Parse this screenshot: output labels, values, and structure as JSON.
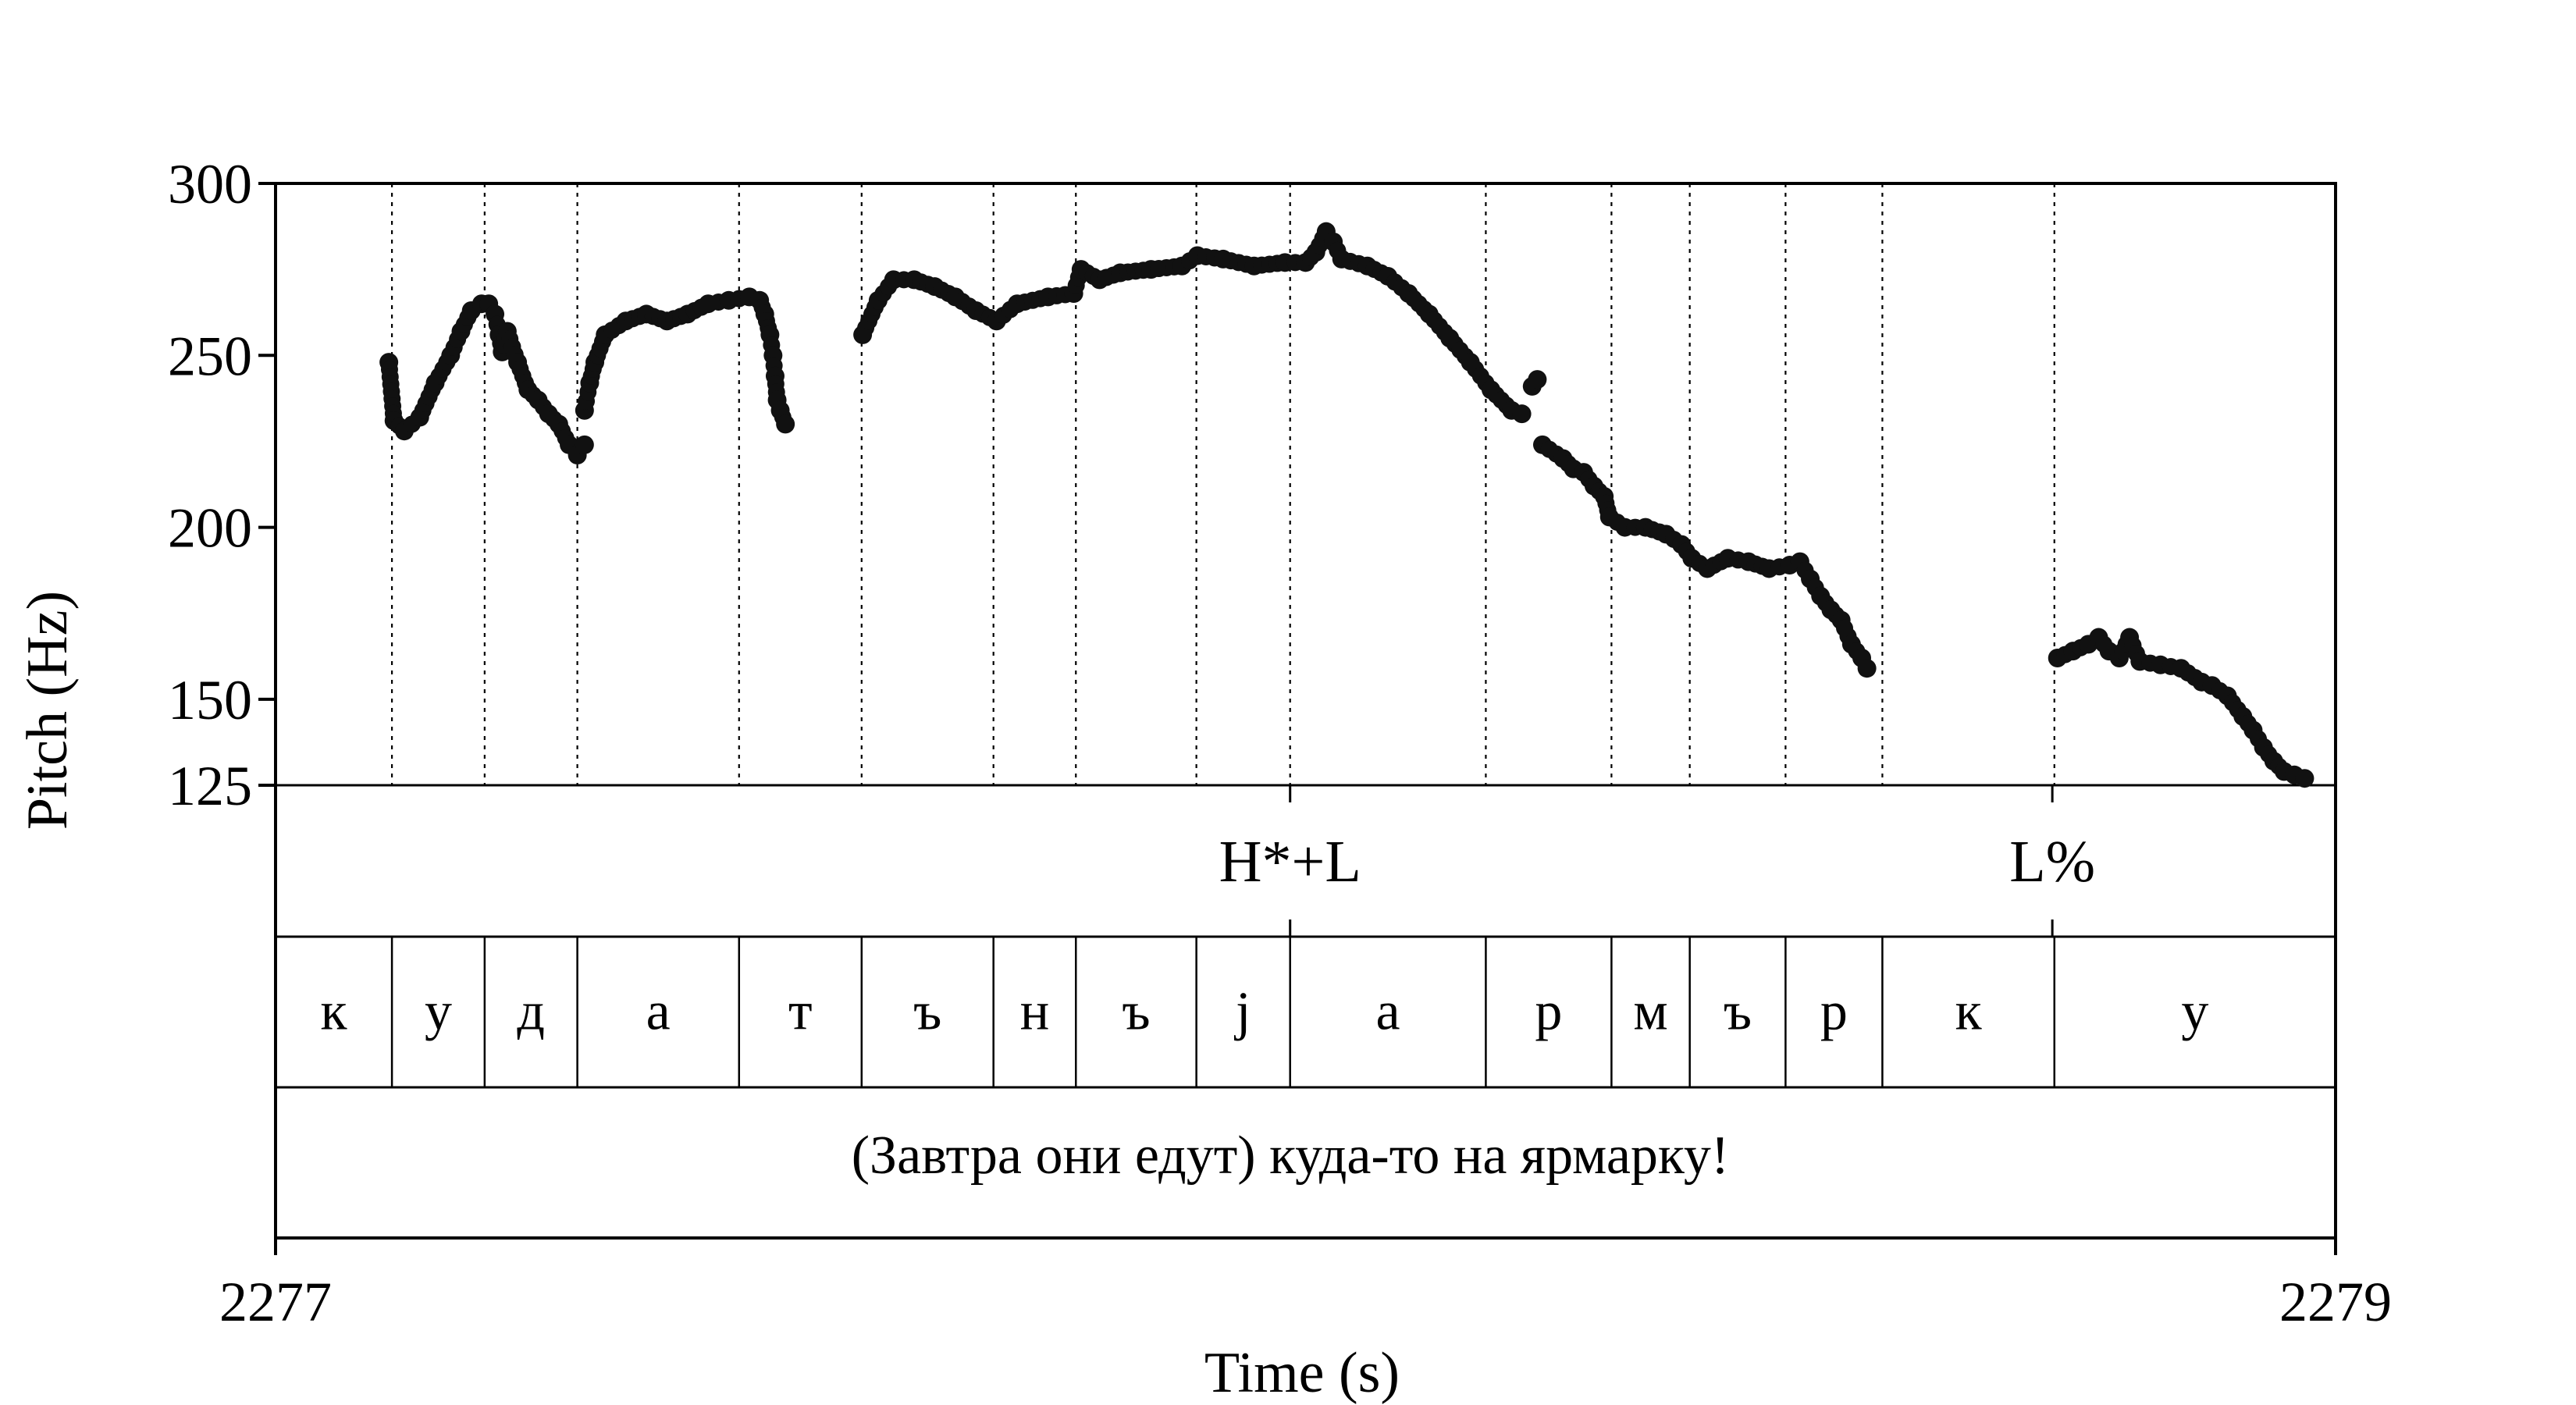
{
  "chart_data": {
    "type": "scatter",
    "xlabel": "Time (s)",
    "ylabel": "Pitch (Hz)",
    "x_unit": "s",
    "xlim": [
      2277.0,
      2279.0
    ],
    "ylim": [
      125,
      300
    ],
    "x_ticks": [
      "2277",
      "2279"
    ],
    "y_ticks": [
      {
        "value": 300,
        "label": "300"
      },
      {
        "value": 250,
        "label": "250"
      },
      {
        "value": 200,
        "label": "200"
      },
      {
        "value": 150,
        "label": "150"
      },
      {
        "value": 125,
        "label": "125"
      }
    ],
    "grid": "vertical dotted lines at segment boundaries",
    "tone_tier": [
      {
        "time": 2277.985,
        "label": "H*+L"
      },
      {
        "time": 2278.725,
        "label": "L%"
      }
    ],
    "segment_boundaries": [
      2277.0,
      2277.113,
      2277.203,
      2277.293,
      2277.45,
      2277.569,
      2277.697,
      2277.777,
      2277.894,
      2277.985,
      2278.175,
      2278.297,
      2278.373,
      2278.466,
      2278.56,
      2278.727,
      2279.0
    ],
    "segments": [
      "к",
      "у",
      "д",
      "а",
      "т",
      "ъ",
      "н",
      "ъ",
      "j",
      "а",
      "р",
      "м",
      "ъ",
      "р",
      "к",
      "у"
    ],
    "sentence": "(Завтра они едут) куда-то на ярмарку!",
    "pitch_contours": [
      [
        [
          2277.11,
          248
        ],
        [
          2277.115,
          231
        ],
        [
          2277.125,
          228
        ],
        [
          2277.14,
          232
        ],
        [
          2277.155,
          242
        ],
        [
          2277.17,
          250
        ],
        [
          2277.18,
          257
        ],
        [
          2277.19,
          263
        ],
        [
          2277.2,
          265
        ],
        [
          2277.207,
          265
        ],
        [
          2277.213,
          262
        ],
        [
          2277.217,
          256
        ],
        [
          2277.22,
          251
        ],
        [
          2277.225,
          257
        ],
        [
          2277.235,
          248
        ],
        [
          2277.245,
          240
        ],
        [
          2277.255,
          237
        ],
        [
          2277.265,
          233
        ],
        [
          2277.275,
          230
        ],
        [
          2277.285,
          224
        ],
        [
          2277.293,
          221
        ],
        [
          2277.3,
          224
        ]
      ],
      [
        [
          2277.3,
          234
        ],
        [
          2277.305,
          242
        ],
        [
          2277.31,
          248
        ],
        [
          2277.32,
          256
        ],
        [
          2277.34,
          260
        ],
        [
          2277.36,
          262
        ],
        [
          2277.38,
          260
        ],
        [
          2277.4,
          262
        ],
        [
          2277.42,
          265
        ],
        [
          2277.44,
          266
        ],
        [
          2277.46,
          267
        ],
        [
          2277.47,
          266
        ],
        [
          2277.475,
          262
        ],
        [
          2277.48,
          256
        ],
        [
          2277.483,
          250
        ],
        [
          2277.485,
          244
        ],
        [
          2277.487,
          237
        ],
        [
          2277.49,
          234
        ],
        [
          2277.495,
          230
        ]
      ],
      [
        [
          2277.57,
          256
        ],
        [
          2277.585,
          266
        ],
        [
          2277.6,
          272
        ],
        [
          2277.62,
          272
        ],
        [
          2277.64,
          270
        ],
        [
          2277.66,
          267
        ],
        [
          2277.68,
          263
        ],
        [
          2277.7,
          260
        ],
        [
          2277.72,
          265
        ],
        [
          2277.75,
          267
        ],
        [
          2277.775,
          268
        ],
        [
          2277.782,
          275
        ],
        [
          2277.8,
          272
        ],
        [
          2277.82,
          274
        ],
        [
          2277.85,
          275
        ],
        [
          2277.88,
          276
        ],
        [
          2277.895,
          279
        ],
        [
          2277.92,
          278
        ],
        [
          2277.95,
          276
        ],
        [
          2277.98,
          277
        ],
        [
          2278.0,
          277
        ],
        [
          2278.01,
          280
        ],
        [
          2278.02,
          286
        ],
        [
          2278.027,
          283
        ],
        [
          2278.035,
          278
        ],
        [
          2278.06,
          276
        ],
        [
          2278.08,
          273
        ],
        [
          2278.1,
          268
        ],
        [
          2278.12,
          262
        ],
        [
          2278.14,
          255
        ],
        [
          2278.16,
          248
        ],
        [
          2278.18,
          240
        ],
        [
          2278.2,
          234
        ],
        [
          2278.21,
          233
        ]
      ],
      [
        [
          2278.22,
          241
        ],
        [
          2278.225,
          243
        ]
      ],
      [
        [
          2278.23,
          224
        ],
        [
          2278.25,
          220
        ],
        [
          2278.26,
          217
        ],
        [
          2278.27,
          216
        ],
        [
          2278.28,
          212
        ],
        [
          2278.29,
          209
        ],
        [
          2278.295,
          203
        ],
        [
          2278.31,
          200
        ],
        [
          2278.33,
          200
        ],
        [
          2278.35,
          198
        ],
        [
          2278.365,
          195
        ],
        [
          2278.375,
          191
        ],
        [
          2278.39,
          188
        ],
        [
          2278.41,
          191
        ],
        [
          2278.43,
          190
        ],
        [
          2278.45,
          188
        ],
        [
          2278.47,
          189
        ],
        [
          2278.48,
          190
        ],
        [
          2278.49,
          185
        ],
        [
          2278.5,
          180
        ],
        [
          2278.51,
          176
        ],
        [
          2278.52,
          173
        ],
        [
          2278.53,
          166
        ],
        [
          2278.54,
          162
        ],
        [
          2278.545,
          159
        ]
      ],
      [
        [
          2278.73,
          162
        ],
        [
          2278.745,
          164
        ],
        [
          2278.76,
          166
        ],
        [
          2278.77,
          168
        ],
        [
          2278.78,
          164
        ],
        [
          2278.79,
          162
        ],
        [
          2278.8,
          168
        ],
        [
          2278.81,
          161
        ],
        [
          2278.83,
          160
        ],
        [
          2278.85,
          159
        ],
        [
          2278.87,
          155
        ],
        [
          2278.88,
          154
        ],
        [
          2278.895,
          151
        ],
        [
          2278.91,
          145
        ],
        [
          2278.92,
          141
        ],
        [
          2278.93,
          136
        ],
        [
          2278.94,
          132
        ],
        [
          2278.95,
          129
        ],
        [
          2278.96,
          128
        ],
        [
          2278.97,
          127
        ]
      ]
    ]
  }
}
